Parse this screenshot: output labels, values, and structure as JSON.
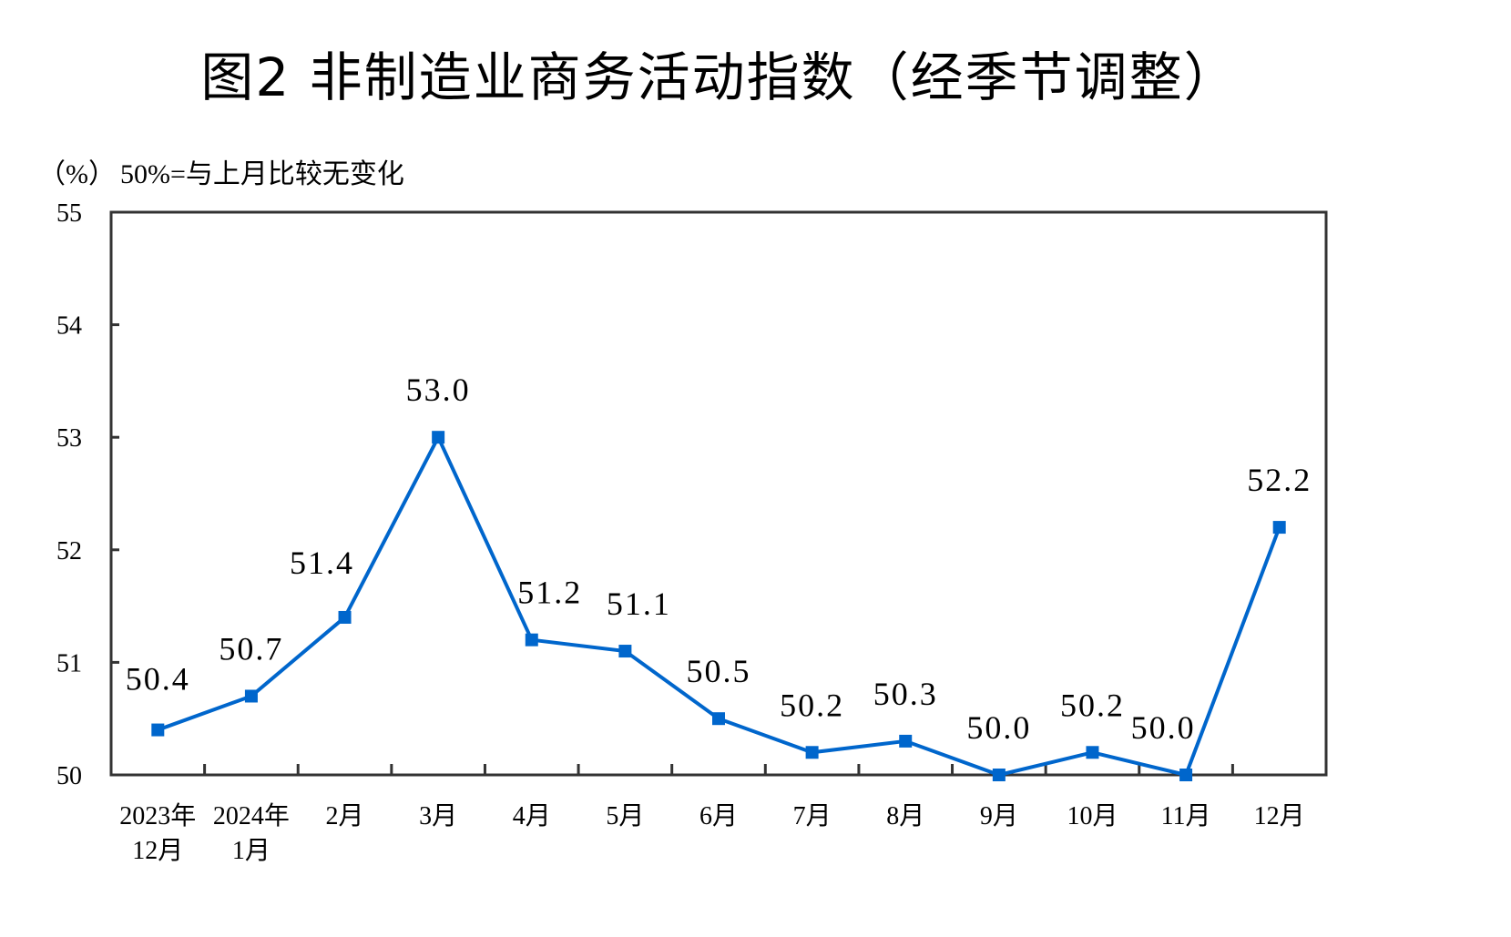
{
  "title": "图2  非制造业商务活动指数（经季节调整）",
  "unit_label": "（%）",
  "note": "50%=与上月比较无变化",
  "colors": {
    "line": "#0066CC",
    "axis": "#333333",
    "text": "#000000"
  },
  "chart_data": {
    "type": "line",
    "title": "图2  非制造业商务活动指数（经季节调整）",
    "subtitle": "50%=与上月比较无变化",
    "xlabel": "",
    "ylabel": "（%）",
    "ylim": [
      50,
      55
    ],
    "yticks": [
      50,
      51,
      52,
      53,
      54,
      55
    ],
    "grid": false,
    "legend": null,
    "categories": [
      "2023年12月",
      "2024年1月",
      "2月",
      "3月",
      "4月",
      "5月",
      "6月",
      "7月",
      "8月",
      "9月",
      "10月",
      "11月",
      "12月"
    ],
    "x_tick_lines": [
      [
        "2023年",
        "12月"
      ],
      [
        "2024年",
        "1月"
      ],
      [
        "2月"
      ],
      [
        "3月"
      ],
      [
        "4月"
      ],
      [
        "5月"
      ],
      [
        "6月"
      ],
      [
        "7月"
      ],
      [
        "8月"
      ],
      [
        "9月"
      ],
      [
        "10月"
      ],
      [
        "11月"
      ],
      [
        "12月"
      ]
    ],
    "series": [
      {
        "name": "非制造业商务活动指数",
        "values": [
          50.4,
          50.7,
          51.4,
          53.0,
          51.2,
          51.1,
          50.5,
          50.2,
          50.3,
          50.0,
          50.2,
          50.0,
          52.2
        ],
        "labels": [
          "50.4",
          "50.7",
          "51.4",
          "53.0",
          "51.2",
          "51.1",
          "50.5",
          "50.2",
          "50.3",
          "50.0",
          "50.2",
          "50.0",
          "52.2"
        ],
        "marker": "square",
        "color": "#0066CC"
      }
    ]
  }
}
